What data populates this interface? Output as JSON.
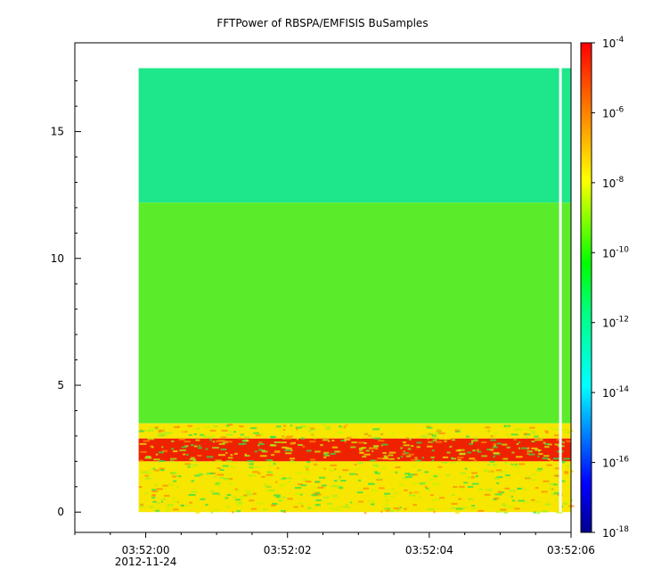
{
  "chart_data": {
    "type": "heatmap",
    "title": "FFTPower of RBSPA/EMFISIS  BuSamples",
    "x_axis": {
      "ticks": [
        {
          "value": "03:52:00",
          "sublabel": "2012-11-24"
        },
        {
          "value": "03:52:02",
          "sublabel": ""
        },
        {
          "value": "03:52:04",
          "sublabel": ""
        },
        {
          "value": "03:52:06",
          "sublabel": ""
        }
      ],
      "range_seconds_after_035200": [
        -1.0,
        6.0
      ],
      "data_start": "03:51:59.9",
      "gap_at": "03:52:05.85"
    },
    "y_axis": {
      "ticks": [
        0,
        5,
        10,
        15
      ],
      "range": [
        -0.8,
        18.5
      ],
      "data_range": [
        0,
        17.5
      ]
    },
    "colorbar": {
      "scale": "log",
      "range": [
        1e-18,
        0.0001
      ],
      "tick_labels": [
        {
          "base": "10",
          "exp": "-4"
        },
        {
          "base": "10",
          "exp": "-6"
        },
        {
          "base": "10",
          "exp": "-8"
        },
        {
          "base": "10",
          "exp": "-10"
        },
        {
          "base": "10",
          "exp": "-12"
        },
        {
          "base": "10",
          "exp": "-14"
        },
        {
          "base": "10",
          "exp": "-16"
        },
        {
          "base": "10",
          "exp": "-18"
        }
      ],
      "colormap": [
        "#00008f",
        "#0000ff",
        "#00ffff",
        "#00ff00",
        "#ffff00",
        "#ff8000",
        "#ff0000"
      ]
    },
    "bands": [
      {
        "y_range": [
          12.2,
          17.5
        ],
        "approx_power": "1e-12"
      },
      {
        "y_range": [
          3.5,
          12.2
        ],
        "approx_power": "1e-10"
      },
      {
        "y_range": [
          2.9,
          3.5
        ],
        "approx_power": "1e-8"
      },
      {
        "y_range": [
          2.0,
          2.9
        ],
        "approx_power": "1e-5"
      },
      {
        "y_range": [
          0,
          2.0
        ],
        "approx_power": "1e-9"
      }
    ],
    "grid": false
  }
}
